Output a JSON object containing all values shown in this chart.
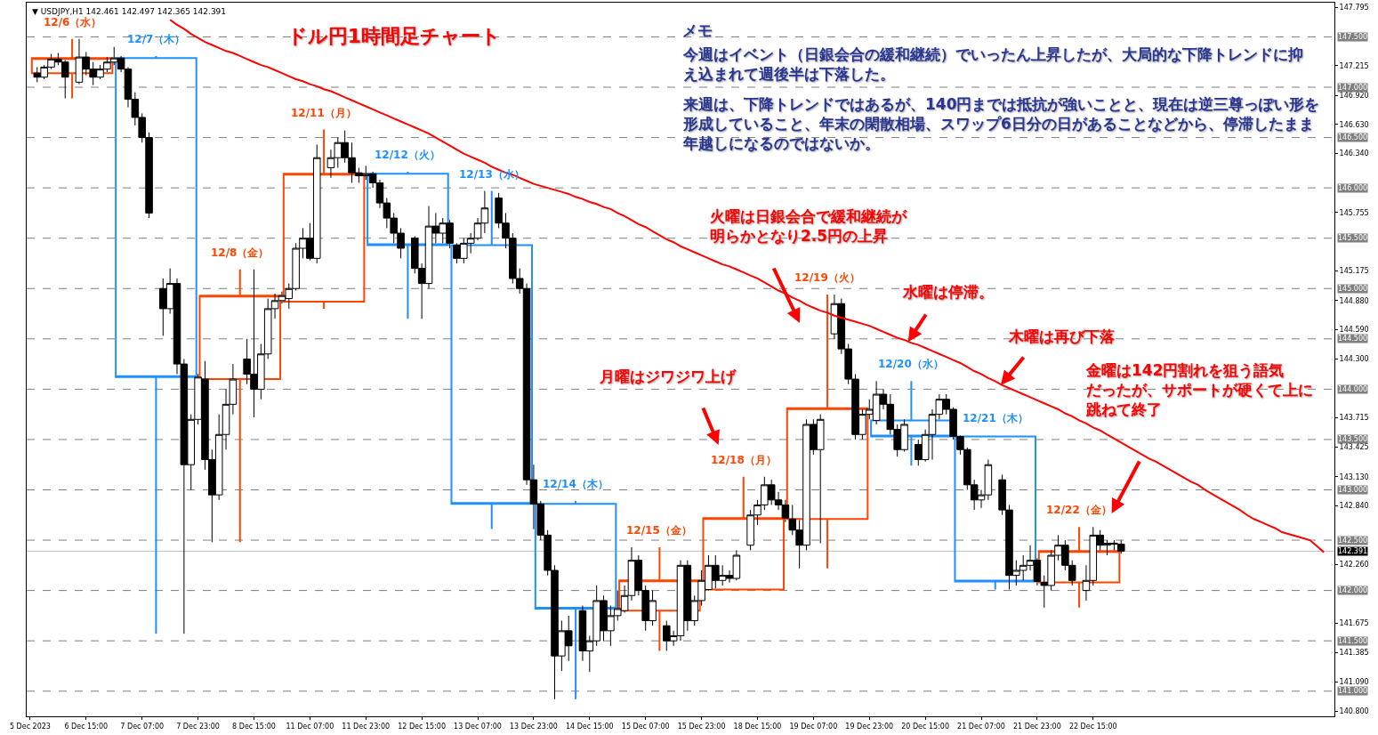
{
  "chart_data": {
    "type": "candlestick",
    "title": "ドル円1時間足チャート",
    "subtitle": "▼ USDJPY,H1 142.461 142.497 142.365 142.391",
    "categories": [
      "5 Dec 2023",
      null,
      null,
      null,
      null,
      null,
      null,
      null,
      "6 Dec 15:00",
      null,
      null,
      null,
      null,
      null,
      null,
      null,
      "7 Dec 07:00",
      null,
      null,
      null,
      null,
      null,
      null,
      null,
      "7 Dec 23:00",
      null,
      null,
      null,
      null,
      null,
      null,
      null,
      "8 Dec 15:00",
      null,
      null,
      null,
      null,
      null,
      null,
      null,
      "11 Dec 07:00",
      null,
      null,
      null,
      null,
      null,
      null,
      null,
      "11 Dec 23:00",
      null,
      null,
      null,
      null,
      null,
      null,
      null,
      "12 Dec 15:00",
      null,
      null,
      null,
      null,
      null,
      null,
      null,
      "13 Dec 07:00",
      null,
      null,
      null,
      null,
      null,
      null,
      null,
      "13 Dec 23:00",
      null,
      null,
      null,
      null,
      null,
      null,
      null,
      "14 Dec 15:00",
      null,
      null,
      null,
      null,
      null,
      null,
      null,
      "15 Dec 07:00",
      null,
      null,
      null,
      null,
      null,
      null,
      null,
      "15 Dec 23:00",
      null,
      null,
      null,
      null,
      null,
      null,
      null,
      "18 Dec 15:00",
      null,
      null,
      null,
      null,
      null,
      null,
      null,
      "19 Dec 07:00",
      null,
      null,
      null,
      null,
      null,
      null,
      null,
      "19 Dec 23:00",
      null,
      null,
      null,
      null,
      null,
      null,
      null,
      "20 Dec 15:00",
      null,
      null,
      null,
      null,
      null,
      null,
      null,
      "21 Dec 07:00",
      null,
      null,
      null,
      null,
      null,
      null,
      null,
      "21 Dec 23:00",
      null,
      null,
      null,
      null,
      null,
      null,
      null,
      "22 Dec 15:00",
      null,
      null,
      null,
      null,
      null,
      null,
      null,
      null,
      null,
      null,
      null,
      null,
      null,
      null,
      null,
      null,
      null,
      null,
      null,
      null,
      null,
      null,
      null,
      null,
      null,
      null,
      null,
      null,
      null,
      null,
      null,
      null,
      null,
      null
    ],
    "ylim": [
      140.75,
      147.84
    ],
    "yticks": [
      {
        "value": 147.795,
        "label": "147.795"
      },
      {
        "value": 147.215,
        "label": "147.215"
      },
      {
        "value": 146.92,
        "label": "146.920"
      },
      {
        "value": 146.63,
        "label": "146.630"
      },
      {
        "value": 146.34,
        "label": "146.340"
      },
      {
        "value": 145.755,
        "label": "145.755"
      },
      {
        "value": 145.175,
        "label": "145.175"
      },
      {
        "value": 144.88,
        "label": "144.880"
      },
      {
        "value": 144.59,
        "label": "144.590"
      },
      {
        "value": 144.3,
        "label": "144.300"
      },
      {
        "value": 143.715,
        "label": "143.715"
      },
      {
        "value": 143.425,
        "label": "143.425"
      },
      {
        "value": 143.13,
        "label": "143.130"
      },
      {
        "value": 142.84,
        "label": "142.840"
      },
      {
        "value": 142.26,
        "label": "142.260"
      },
      {
        "value": 141.675,
        "label": "141.675"
      },
      {
        "value": 141.385,
        "label": "141.385"
      },
      {
        "value": 141.09,
        "label": "141.090"
      },
      {
        "value": 140.8,
        "label": "140.800"
      }
    ],
    "series": [
      {
        "ohlc": [
          null,
          null,
          null,
          null,
          null,
          null,
          [
            147.14,
            147.48,
            146.89,
            147.29
          ],
          null,
          null,
          null,
          null,
          null,
          null,
          null,
          null,
          null,
          null,
          null,
          [
            147.29,
            147.31,
            141.57,
            144.12
          ],
          null,
          null,
          null,
          null,
          null,
          null,
          null,
          null,
          null,
          null,
          null,
          [
            144.1,
            145.19,
            142.48,
            144.93
          ],
          null,
          null,
          null,
          null,
          null,
          null,
          null,
          null,
          null,
          null,
          null,
          [
            144.87,
            146.58,
            144.8,
            146.14
          ],
          null,
          null,
          null,
          null,
          null,
          null,
          null,
          null,
          null,
          null,
          null,
          [
            146.14,
            146.16,
            144.7,
            145.43
          ],
          null,
          null,
          null,
          null,
          null,
          null,
          null,
          null,
          null,
          null,
          null,
          [
            145.43,
            145.97,
            142.61,
            142.86
          ],
          null,
          null,
          null,
          null,
          null,
          null,
          null,
          null,
          null,
          null,
          null,
          [
            142.86,
            142.89,
            140.92,
            141.82
          ],
          null,
          null,
          null,
          null,
          null,
          null,
          null,
          null,
          null,
          null,
          null,
          [
            141.8,
            142.43,
            141.4,
            142.1
          ],
          null,
          null,
          null,
          null,
          null,
          null,
          null,
          null,
          null,
          null,
          null,
          [
            142.01,
            143.13,
            142,
            142.72
          ],
          null,
          null,
          null,
          null,
          null,
          null,
          null,
          null,
          null,
          null,
          null,
          [
            142.71,
            144.94,
            142.22,
            143.81
          ],
          null,
          null,
          null,
          null,
          null,
          null,
          null,
          null,
          null,
          null,
          null,
          [
            143.69,
            144.08,
            143.24,
            143.53
          ],
          null,
          null,
          null,
          null,
          null,
          null,
          null,
          null,
          null,
          null,
          null,
          [
            143.53,
            143.54,
            142.01,
            142.09
          ],
          null,
          null,
          null,
          null,
          null,
          null,
          null,
          null,
          null,
          null,
          null,
          [
            142.08,
            142.63,
            141.83,
            142.391
          ],
          null,
          null,
          null,
          null,
          null,
          null,
          null,
          null,
          null,
          null,
          null,
          null,
          null,
          null,
          null,
          null,
          null,
          null,
          null,
          null,
          null,
          null,
          null,
          null,
          null,
          null,
          null,
          null,
          null,
          null,
          null,
          null,
          null,
          null,
          null,
          null
        ],
        "colors": [
          null,
          null,
          null,
          null,
          null,
          null,
          "#ff4500",
          null,
          null,
          null,
          null,
          null,
          null,
          null,
          null,
          null,
          null,
          null,
          "#1e90ff",
          null,
          null,
          null,
          null,
          null,
          null,
          null,
          null,
          null,
          null,
          null,
          "#ff4500",
          null,
          null,
          null,
          null,
          null,
          null,
          null,
          null,
          null,
          null,
          null,
          "#ff4500",
          null,
          null,
          null,
          null,
          null,
          null,
          null,
          null,
          null,
          null,
          null,
          "#1e90ff",
          null,
          null,
          null,
          null,
          null,
          null,
          null,
          null,
          null,
          null,
          null,
          "#1e90ff",
          null,
          null,
          null,
          null,
          null,
          null,
          null,
          null,
          null,
          null,
          null,
          "#1e90ff",
          null,
          null,
          null,
          null,
          null,
          null,
          null,
          null,
          null,
          null,
          null,
          "#ff4500",
          null,
          null,
          null,
          null,
          null,
          null,
          null,
          null,
          null,
          null,
          null,
          "#ff4500",
          null,
          null,
          null,
          null,
          null,
          null,
          null,
          null,
          null,
          null,
          null,
          "#ff4500",
          null,
          null,
          null,
          null,
          null,
          null,
          null,
          null,
          null,
          null,
          null,
          "#1e90ff",
          null,
          null,
          null,
          null,
          null,
          null,
          null,
          null,
          null,
          null,
          null,
          "#1e90ff",
          null,
          null,
          null,
          null,
          null,
          null,
          null,
          null,
          null,
          null,
          null,
          "#ff4500",
          null,
          null,
          null,
          null,
          null,
          null,
          null,
          null,
          null,
          null,
          null,
          null,
          null,
          null,
          null,
          null,
          null,
          null,
          null,
          null,
          null,
          null,
          null,
          null,
          null,
          null,
          null,
          null,
          null,
          null,
          null,
          null,
          null,
          null,
          null,
          null
        ]
      },
      {
        "color": "#000000",
        "ohlc": [
          null,
          [
            147.14,
            147.2,
            147.05,
            147.1
          ],
          [
            147.1,
            147.22,
            147.08,
            147.2
          ],
          [
            147.2,
            147.33,
            147.18,
            147.28
          ],
          [
            147.28,
            147.34,
            147.22,
            147.25
          ],
          [
            147.25,
            147.27,
            146.89,
            147.1
          ],
          null,
          [
            147.05,
            147.48,
            147.03,
            147.3
          ],
          [
            147.3,
            147.35,
            147.12,
            147.18
          ],
          [
            147.18,
            147.25,
            147.02,
            147.1
          ],
          [
            147.1,
            147.22,
            147.08,
            147.18
          ],
          [
            147.18,
            147.3,
            147.15,
            147.25
          ],
          [
            147.25,
            147.4,
            147.22,
            147.29
          ],
          [
            147.29,
            147.31,
            147.15,
            147.18
          ],
          [
            147.18,
            147.2,
            146.8,
            146.88
          ],
          [
            146.88,
            146.95,
            146.62,
            146.7
          ],
          [
            146.7,
            146.74,
            146.45,
            146.5
          ],
          [
            146.5,
            146.55,
            145.7,
            145.75
          ],
          null,
          [
            145,
            145.1,
            144.53,
            144.8
          ],
          [
            144.8,
            145.2,
            144.75,
            145.05
          ],
          [
            145.05,
            145.1,
            144.15,
            144.25
          ],
          [
            144.25,
            144.3,
            141.57,
            143.25
          ],
          [
            143.25,
            143.75,
            143,
            143.7
          ],
          [
            143.7,
            144.15,
            143.65,
            144.12
          ],
          [
            144.1,
            144.28,
            143.2,
            143.3
          ],
          [
            143.3,
            143.4,
            142.48,
            142.95
          ],
          [
            142.95,
            143.75,
            142.9,
            143.55
          ],
          [
            143.55,
            144,
            143.4,
            143.85
          ],
          [
            143.85,
            144.25,
            143.75,
            144.1
          ],
          null,
          [
            144.3,
            144.5,
            144.05,
            144.15
          ],
          [
            144.15,
            145.19,
            143.72,
            144
          ],
          [
            144,
            144.45,
            143.9,
            144.35
          ],
          [
            144.35,
            144.9,
            144.3,
            144.8
          ],
          [
            144.8,
            144.95,
            144.7,
            144.88
          ],
          [
            144.88,
            144.97,
            144.85,
            144.93
          ],
          [
            144.9,
            145.05,
            144.8,
            145
          ],
          [
            145,
            145.45,
            144.98,
            145.4
          ],
          [
            145.4,
            145.6,
            145.3,
            145.5
          ],
          [
            145.5,
            145.65,
            145.28,
            145.3
          ],
          [
            145.3,
            146.43,
            145.25,
            146.3
          ],
          null,
          [
            146.2,
            146.38,
            146.1,
            146.3
          ],
          [
            146.3,
            146.5,
            146.2,
            146.45
          ],
          [
            146.45,
            146.57,
            146.25,
            146.3
          ],
          [
            146.3,
            146.45,
            146.05,
            146.15
          ],
          [
            146.15,
            146.2,
            146.05,
            146.12
          ],
          [
            146.12,
            146.22,
            146.08,
            146.14
          ],
          [
            146.14,
            146.16,
            146,
            146.05
          ],
          [
            146.05,
            146.08,
            145.8,
            145.85
          ],
          [
            145.85,
            145.9,
            145.6,
            145.7
          ],
          [
            145.7,
            145.75,
            145.45,
            145.55
          ],
          [
            145.55,
            145.6,
            145.3,
            145.4
          ],
          null,
          [
            145.5,
            145.52,
            145.15,
            145.2
          ],
          [
            145.2,
            145.25,
            144.7,
            145.05
          ],
          [
            145.05,
            145.82,
            145,
            145.62
          ],
          [
            145.62,
            145.75,
            145.45,
            145.55
          ],
          [
            145.55,
            145.7,
            145.45,
            145.65
          ],
          [
            145.65,
            145.68,
            145.4,
            145.45
          ],
          [
            145.43,
            145.45,
            145.25,
            145.3
          ],
          [
            145.3,
            145.5,
            145.25,
            145.45
          ],
          [
            145.45,
            145.55,
            145.35,
            145.5
          ],
          [
            145.5,
            145.7,
            145.48,
            145.65
          ],
          [
            145.65,
            145.97,
            145.55,
            145.8
          ],
          null,
          [
            145.9,
            145.95,
            145.6,
            145.65
          ],
          [
            145.65,
            145.75,
            145.4,
            145.5
          ],
          [
            145.5,
            145.55,
            145.05,
            145.1
          ],
          [
            145.1,
            145.2,
            144.95,
            145
          ],
          [
            145,
            145.05,
            143.05,
            143.1
          ],
          [
            143.1,
            143.25,
            142.61,
            142.86
          ],
          [
            142.86,
            142.89,
            142.5,
            142.55
          ],
          [
            142.55,
            142.6,
            142.15,
            142.2
          ],
          [
            142.2,
            142.25,
            140.92,
            141.35
          ],
          [
            141.35,
            141.7,
            141.2,
            141.6
          ],
          [
            141.6,
            141.75,
            141.3,
            141.45
          ],
          null,
          [
            141.8,
            141.85,
            141.3,
            141.4
          ],
          [
            141.4,
            141.55,
            141.19,
            141.5
          ],
          [
            141.5,
            142.05,
            141.45,
            141.9
          ],
          [
            141.9,
            141.95,
            141.5,
            141.6
          ],
          [
            141.6,
            141.85,
            141.45,
            141.75
          ],
          [
            141.75,
            142,
            141.7,
            141.82
          ],
          [
            141.8,
            142.05,
            141.78,
            141.95
          ],
          [
            141.95,
            142.43,
            141.9,
            142.3
          ],
          [
            142.3,
            142.35,
            141.95,
            142
          ],
          [
            142,
            142.05,
            141.6,
            141.7
          ],
          [
            141.7,
            142,
            141.65,
            141.9
          ],
          null,
          [
            141.65,
            141.7,
            141.4,
            141.5
          ],
          [
            141.5,
            141.6,
            141.45,
            141.55
          ],
          [
            141.55,
            142.3,
            141.5,
            142.25
          ],
          [
            142.25,
            142.3,
            141.6,
            141.7
          ],
          [
            141.7,
            141.95,
            141.65,
            141.9
          ],
          [
            141.9,
            142.2,
            141.85,
            142.1
          ],
          [
            142.01,
            142.35,
            142,
            142.25
          ],
          [
            142.25,
            142.35,
            142.02,
            142.1
          ],
          [
            142.1,
            142.25,
            142.05,
            142.15
          ],
          [
            142.15,
            142.2,
            142.08,
            142.12
          ],
          [
            142.12,
            142.4,
            142.1,
            142.35
          ],
          null,
          [
            142.45,
            142.8,
            142.4,
            142.75
          ],
          [
            142.75,
            142.9,
            142.65,
            142.85
          ],
          [
            142.85,
            143.13,
            142.8,
            143.05
          ],
          [
            143.05,
            143.1,
            142.85,
            142.9
          ],
          [
            142.9,
            142.98,
            142.8,
            142.85
          ],
          [
            142.85,
            142.9,
            142.68,
            142.72
          ],
          [
            142.71,
            142.85,
            142.55,
            142.6
          ],
          [
            142.6,
            142.7,
            142.22,
            142.45
          ],
          [
            142.45,
            143.7,
            142.4,
            143.65
          ],
          [
            143.65,
            143.7,
            143.35,
            143.4
          ],
          [
            143.4,
            143.75,
            142.47,
            143.7
          ],
          null,
          [
            144.55,
            144.94,
            144.5,
            144.85
          ],
          [
            144.85,
            144.9,
            144.35,
            144.4
          ],
          [
            144.4,
            144.45,
            144.05,
            144.1
          ],
          [
            144.1,
            144.15,
            143.5,
            143.55
          ],
          [
            143.55,
            143.8,
            143.5,
            143.75
          ],
          [
            143.75,
            143.9,
            143.7,
            143.8
          ],
          [
            143.69,
            144.08,
            143.65,
            143.95
          ],
          [
            143.95,
            144,
            143.8,
            143.85
          ],
          [
            143.85,
            143.95,
            143.55,
            143.6
          ],
          [
            143.6,
            143.65,
            143.33,
            143.4
          ],
          [
            143.4,
            143.7,
            143.38,
            143.65
          ],
          null,
          [
            143.45,
            143.5,
            143.24,
            143.3
          ],
          [
            143.3,
            143.6,
            143.28,
            143.55
          ],
          [
            143.55,
            143.8,
            143.3,
            143.75
          ],
          [
            143.75,
            143.95,
            143.7,
            143.9
          ],
          [
            143.9,
            143.95,
            143.75,
            143.8
          ],
          [
            143.8,
            143.82,
            143.5,
            143.53
          ],
          [
            143.53,
            143.54,
            143.35,
            143.4
          ],
          [
            143.4,
            143.42,
            143,
            143.05
          ],
          [
            143.05,
            143.1,
            142.8,
            142.9
          ],
          [
            142.9,
            143,
            142.82,
            142.95
          ],
          [
            142.95,
            143.3,
            142.9,
            143.25
          ],
          null,
          [
            143.1,
            143.15,
            142.75,
            142.8
          ],
          [
            142.8,
            142.85,
            142.01,
            142.15
          ],
          [
            142.15,
            142.3,
            142.05,
            142.2
          ],
          [
            142.2,
            142.35,
            142.1,
            142.25
          ],
          [
            142.25,
            142.45,
            142.2,
            142.3
          ],
          [
            142.3,
            142.32,
            142.05,
            142.09
          ],
          [
            142.08,
            142.15,
            141.83,
            142.05
          ],
          [
            142.05,
            142.4,
            142,
            142.35
          ],
          [
            142.35,
            142.55,
            142.3,
            142.45
          ],
          [
            142.45,
            142.5,
            142.2,
            142.25
          ],
          [
            142.25,
            142.3,
            142.05,
            142.1
          ],
          null,
          [
            142,
            142.25,
            141.9,
            142.1
          ],
          [
            142.1,
            142.63,
            142.05,
            142.55
          ],
          [
            142.55,
            142.6,
            142.4,
            142.45
          ],
          [
            142.45,
            142.5,
            142.35,
            142.47
          ],
          [
            142.47,
            142.5,
            142.4,
            142.46
          ],
          [
            142.461,
            142.497,
            142.365,
            142.391
          ],
          null,
          null,
          null,
          null,
          null,
          null,
          null,
          null,
          null,
          null,
          null,
          null,
          null,
          null,
          null,
          null,
          null,
          null,
          null,
          null,
          null,
          null,
          null,
          null,
          null,
          null,
          null,
          null,
          null,
          null
        ]
      },
      {
        "type": "line",
        "color": "#ff0000",
        "values": [
          null,
          null,
          null,
          null,
          null,
          null,
          null,
          null,
          null,
          null,
          null,
          null,
          null,
          null,
          null,
          null,
          null,
          null,
          null,
          null,
          147.67,
          147.62,
          147.58,
          147.53,
          147.49,
          147.45,
          147.42,
          147.39,
          147.36,
          147.34,
          147.31,
          147.28,
          147.25,
          147.22,
          147.2,
          147.17,
          147.14,
          147.11,
          147.08,
          147.06,
          147.03,
          147.01,
          146.98,
          146.96,
          146.93,
          146.9,
          146.87,
          146.84,
          146.81,
          146.78,
          146.75,
          146.72,
          146.69,
          146.66,
          146.63,
          146.6,
          146.57,
          146.54,
          146.5,
          146.46,
          146.42,
          146.38,
          146.34,
          146.31,
          146.28,
          146.25,
          146.21,
          146.18,
          146.15,
          146.13,
          146.1,
          146.07,
          146.04,
          146.02,
          146,
          145.98,
          145.96,
          145.94,
          145.91,
          145.89,
          145.86,
          145.84,
          145.81,
          145.79,
          145.75,
          145.72,
          145.68,
          145.64,
          145.61,
          145.57,
          145.53,
          145.49,
          145.46,
          145.42,
          145.39,
          145.36,
          145.33,
          145.3,
          145.27,
          145.24,
          145.22,
          145.19,
          145.16,
          145.13,
          145.1,
          145.06,
          145.02,
          144.98,
          144.95,
          144.91,
          144.88,
          144.84,
          144.81,
          144.78,
          144.76,
          144.73,
          144.71,
          144.69,
          144.67,
          144.65,
          144.63,
          144.6,
          144.57,
          144.54,
          144.51,
          144.49,
          144.46,
          144.44,
          144.41,
          144.38,
          144.35,
          144.32,
          144.29,
          144.26,
          144.22,
          144.18,
          144.15,
          144.11,
          144.08,
          144.04,
          144.01,
          143.98,
          143.95,
          143.92,
          143.89,
          143.86,
          143.83,
          143.8,
          143.76,
          143.73,
          143.69,
          143.66,
          143.62,
          143.59,
          143.55,
          143.51,
          143.47,
          143.43,
          143.39,
          143.35,
          143.31,
          143.28,
          143.24,
          143.2,
          143.16,
          143.12,
          143.08,
          143.05,
          143,
          142.96,
          142.92,
          142.88,
          142.84,
          142.8,
          142.75,
          142.71,
          142.68,
          142.65,
          142.62,
          142.58,
          142.56,
          142.54,
          142.52,
          142.5,
          142.44,
          142.38,
          null
        ]
      }
    ],
    "ref_lines": [
      {
        "axis": "y",
        "value": 147.5,
        "label": "147.500",
        "color": "#808080",
        "line_style": "dashed"
      },
      {
        "axis": "y",
        "value": 147.0,
        "label": "147.000",
        "color": "#808080",
        "line_style": "dashed"
      },
      {
        "axis": "y",
        "value": 146.5,
        "label": "146.500",
        "color": "#808080",
        "line_style": "dashed"
      },
      {
        "axis": "y",
        "value": 146.0,
        "label": "146.000",
        "color": "#808080",
        "line_style": "dashed"
      },
      {
        "axis": "y",
        "value": 145.5,
        "label": "145.500",
        "color": "#808080",
        "line_style": "dashed"
      },
      {
        "axis": "y",
        "value": 145.0,
        "label": "145.000",
        "color": "#808080",
        "line_style": "dashed"
      },
      {
        "axis": "y",
        "value": 144.5,
        "label": "144.500",
        "color": "#808080",
        "line_style": "dashed"
      },
      {
        "axis": "y",
        "value": 144.0,
        "label": "144.000",
        "color": "#808080",
        "line_style": "dashed"
      },
      {
        "axis": "y",
        "value": 143.5,
        "label": "143.500",
        "color": "#808080",
        "line_style": "dashed"
      },
      {
        "axis": "y",
        "value": 143.0,
        "label": "143.000",
        "color": "#808080",
        "line_style": "dashed"
      },
      {
        "axis": "y",
        "value": 142.5,
        "label": "142.500",
        "color": "#808080",
        "line_style": "dashed"
      },
      {
        "axis": "y",
        "value": 142.0,
        "label": "142.000",
        "color": "#808080",
        "line_style": "dashed"
      },
      {
        "axis": "y",
        "value": 141.5,
        "label": "141.500",
        "color": "#808080",
        "line_style": "dashed"
      },
      {
        "axis": "y",
        "value": 141.0,
        "label": "141.000",
        "color": "#808080",
        "line_style": "dashed"
      },
      {
        "axis": "y",
        "value": 142.391,
        "label": "142.391",
        "color": "#c0c0c0",
        "line_style": "solid"
      }
    ],
    "annotations": [
      "12/6（水）",
      "12/7（木）",
      "12/8（金）",
      "12/11（月）",
      "12/12（火）",
      "12/13（水）",
      "12/14（木）",
      "12/15（金）",
      "12/18（月）",
      "12/19（火）",
      "12/20（水）",
      "12/21（木）",
      "12/22（金）",
      "メモ",
      "今週はイベント（日銀会合の緩和継続）でいったん上昇したが、大局的な下降トレンドに抑え込まれて週後半は下落した。",
      "来週は、下降トレンドではあるが、140円までは抵抗が強いことと、現在は逆三尊っぽい形を形成していること、年末の閑散相場、スワップ6日分の日があることなどから、停滞したまま年越しになるのではないか。",
      "火曜は日銀会合で緩和継続が明らかとなり2.5円の上昇",
      {
        "text": "水曜は停滞。",
        "y": 144.47
      },
      {
        "text": "木曜は再び下落",
        "y": 144.04
      },
      "月曜はジワジワ上げ",
      "金曜は142円割れを狙う語気だったが、サポートが硬くて上に跳ねて終了"
    ]
  }
}
